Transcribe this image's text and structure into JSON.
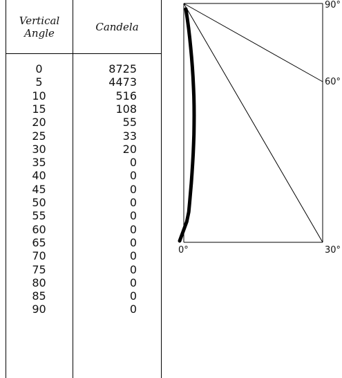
{
  "table": {
    "headers": {
      "angle": [
        "Vertical",
        "Angle"
      ],
      "candela": "Candela"
    },
    "rows": [
      {
        "angle": "0",
        "candela": "8725"
      },
      {
        "angle": "5",
        "candela": "4473"
      },
      {
        "angle": "10",
        "candela": "516"
      },
      {
        "angle": "15",
        "candela": "108"
      },
      {
        "angle": "20",
        "candela": "55"
      },
      {
        "angle": "25",
        "candela": "33"
      },
      {
        "angle": "30",
        "candela": "20"
      },
      {
        "angle": "35",
        "candela": "0"
      },
      {
        "angle": "40",
        "candela": "0"
      },
      {
        "angle": "45",
        "candela": "0"
      },
      {
        "angle": "50",
        "candela": "0"
      },
      {
        "angle": "55",
        "candela": "0"
      },
      {
        "angle": "60",
        "candela": "0"
      },
      {
        "angle": "65",
        "candela": "0"
      },
      {
        "angle": "70",
        "candela": "0"
      },
      {
        "angle": "75",
        "candela": "0"
      },
      {
        "angle": "80",
        "candela": "0"
      },
      {
        "angle": "85",
        "candela": "0"
      },
      {
        "angle": "90",
        "candela": "0"
      }
    ]
  },
  "chart_data": {
    "type": "line",
    "title": "",
    "xlabel": "",
    "ylabel": "",
    "angle_labels": [
      "0°",
      "30°",
      "60°",
      "90°"
    ],
    "reference_angles": [
      0,
      30,
      60,
      90
    ],
    "series": [
      {
        "x": [
          0,
          5,
          10,
          15,
          20,
          25,
          30,
          35,
          40,
          45,
          50,
          55,
          60,
          65,
          70,
          75,
          80,
          85,
          90
        ],
        "y": [
          8725,
          4473,
          516,
          108,
          55,
          33,
          20,
          0,
          0,
          0,
          0,
          0,
          0,
          0,
          0,
          0,
          0,
          0,
          0
        ]
      }
    ],
    "grid": false,
    "line_color": "#000000"
  }
}
